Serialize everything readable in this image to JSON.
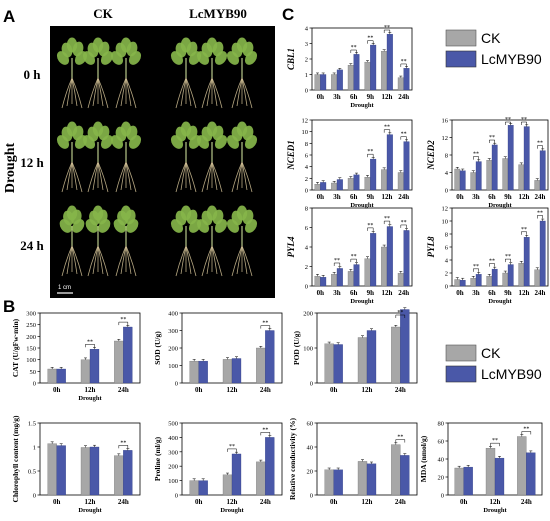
{
  "panels": {
    "a_label": "A",
    "b_label": "B",
    "c_label": "C"
  },
  "photo": {
    "col_labels": [
      "CK",
      "LcMYB90"
    ],
    "row_labels": [
      "0 h",
      "12 h",
      "24 h"
    ],
    "group_label": "Drought",
    "scale_label": "1 cm"
  },
  "legend": {
    "entries": [
      "CK",
      "LcMYB90"
    ],
    "colors": {
      "ck": "#a7a7a7",
      "lcmyb90": "#4a58a8"
    }
  },
  "colors": {
    "ck": "#a7a7a7",
    "lcmyb90": "#4a58a8",
    "photo_background": "#000000",
    "leaf": "#86b54a",
    "root": "#d8c79a"
  },
  "sig_mark": "**",
  "chart_data": [
    {
      "id": "CBL1",
      "type": "bar",
      "ylabel": "CBL1",
      "italic_ylabel": true,
      "xlabel": "Drought",
      "categories": [
        "0h",
        "3h",
        "6h",
        "9h",
        "12h",
        "24h"
      ],
      "ylim": [
        0,
        4
      ],
      "yticks": [
        0,
        1,
        2,
        3,
        4
      ],
      "series": [
        {
          "name": "CK",
          "values": [
            1.0,
            1.0,
            1.6,
            1.8,
            2.5,
            0.8
          ]
        },
        {
          "name": "LcMYB90",
          "values": [
            1.0,
            1.3,
            2.3,
            2.9,
            3.6,
            1.4
          ]
        }
      ],
      "significant": [
        false,
        false,
        true,
        true,
        true,
        true
      ]
    },
    {
      "id": "NCED1",
      "type": "bar",
      "ylabel": "NCED1",
      "italic_ylabel": true,
      "xlabel": "Drought",
      "categories": [
        "0h",
        "3h",
        "6h",
        "9h",
        "12h",
        "24h"
      ],
      "ylim": [
        0,
        12
      ],
      "yticks": [
        0,
        2,
        4,
        6,
        8,
        10,
        12
      ],
      "series": [
        {
          "name": "CK",
          "values": [
            1.0,
            1.2,
            2.0,
            2.2,
            3.5,
            3.0
          ]
        },
        {
          "name": "LcMYB90",
          "values": [
            1.3,
            1.8,
            2.6,
            5.3,
            9.5,
            8.3
          ]
        }
      ],
      "significant": [
        false,
        false,
        false,
        true,
        true,
        true
      ]
    },
    {
      "id": "NCED2",
      "type": "bar",
      "ylabel": "NCED2",
      "italic_ylabel": true,
      "xlabel": "Drought",
      "categories": [
        "0h",
        "3h",
        "6h",
        "9h",
        "12h",
        "24h"
      ],
      "ylim": [
        0,
        16
      ],
      "yticks": [
        0,
        4,
        8,
        12,
        16
      ],
      "series": [
        {
          "name": "CK",
          "values": [
            4.8,
            4.0,
            6.8,
            7.2,
            5.8,
            2.2
          ]
        },
        {
          "name": "LcMYB90",
          "values": [
            4.4,
            6.5,
            10.3,
            14.8,
            14.5,
            9.0
          ]
        }
      ],
      "significant": [
        false,
        true,
        true,
        true,
        true,
        true
      ]
    },
    {
      "id": "PYL4",
      "type": "bar",
      "ylabel": "PYL4",
      "italic_ylabel": true,
      "xlabel": "Drought",
      "categories": [
        "0h",
        "3h",
        "6h",
        "9h",
        "12h",
        "24h"
      ],
      "ylim": [
        0,
        8
      ],
      "yticks": [
        0,
        2,
        4,
        6,
        8
      ],
      "series": [
        {
          "name": "CK",
          "values": [
            1.0,
            1.2,
            1.5,
            2.8,
            4.0,
            1.3
          ]
        },
        {
          "name": "LcMYB90",
          "values": [
            0.9,
            1.8,
            2.2,
            5.4,
            6.1,
            5.7
          ]
        }
      ],
      "significant": [
        false,
        true,
        true,
        true,
        true,
        true
      ]
    },
    {
      "id": "PYL8",
      "type": "bar",
      "ylabel": "PYL8",
      "italic_ylabel": true,
      "xlabel": "Drought",
      "categories": [
        "0h",
        "3h",
        "6h",
        "9h",
        "12h",
        "24h"
      ],
      "ylim": [
        0,
        12
      ],
      "yticks": [
        0,
        2,
        4,
        6,
        8,
        10,
        12
      ],
      "series": [
        {
          "name": "CK",
          "values": [
            1.0,
            1.2,
            1.5,
            2.0,
            3.5,
            2.5
          ]
        },
        {
          "name": "LcMYB90",
          "values": [
            0.9,
            1.8,
            2.6,
            3.3,
            7.5,
            10.0
          ]
        }
      ],
      "significant": [
        false,
        true,
        true,
        true,
        true,
        true
      ]
    },
    {
      "id": "CAT",
      "type": "bar",
      "ylabel": "CAT (U/gFw·min)",
      "xlabel": "Drought",
      "categories": [
        "0h",
        "12h",
        "24h"
      ],
      "ylim": [
        0,
        300
      ],
      "yticks": [
        0,
        50,
        100,
        150,
        200,
        250,
        300
      ],
      "series": [
        {
          "name": "CK",
          "values": [
            60,
            100,
            180
          ]
        },
        {
          "name": "LcMYB90",
          "values": [
            60,
            145,
            240
          ]
        }
      ],
      "significant": [
        false,
        true,
        true
      ]
    },
    {
      "id": "SOD",
      "type": "bar",
      "ylabel": "SOD (U/g)",
      "categories": [
        "0h",
        "12h",
        "24h"
      ],
      "ylim": [
        0,
        400
      ],
      "yticks": [
        0,
        100,
        200,
        300,
        400
      ],
      "series": [
        {
          "name": "CK",
          "values": [
            125,
            135,
            200
          ]
        },
        {
          "name": "LcMYB90",
          "values": [
            125,
            140,
            300
          ]
        }
      ],
      "significant": [
        false,
        false,
        true
      ]
    },
    {
      "id": "POD",
      "type": "bar",
      "ylabel": "POD (U/g)",
      "categories": [
        "0h",
        "12h",
        "24h"
      ],
      "ylim": [
        0,
        200
      ],
      "yticks": [
        0,
        100,
        200
      ],
      "series": [
        {
          "name": "CK",
          "values": [
            112,
            130,
            160
          ]
        },
        {
          "name": "LcMYB90",
          "values": [
            110,
            150,
            210
          ]
        }
      ],
      "significant": [
        false,
        false,
        true
      ]
    },
    {
      "id": "Chlorophyll",
      "type": "bar",
      "ylabel": "Chlorophyll content (mg/g)",
      "xlabel": "Drought",
      "categories": [
        "0h",
        "12h",
        "24h"
      ],
      "ylim": [
        0,
        1.5
      ],
      "yticks": [
        0.0,
        0.5,
        1.0,
        1.5
      ],
      "series": [
        {
          "name": "CK",
          "values": [
            1.07,
            0.99,
            0.82
          ]
        },
        {
          "name": "LcMYB90",
          "values": [
            1.03,
            1.0,
            0.93
          ]
        }
      ],
      "significant": [
        false,
        false,
        true
      ]
    },
    {
      "id": "Proline",
      "type": "bar",
      "ylabel": "Proline (ml/g)",
      "xlabel": "Drought",
      "categories": [
        "0h",
        "12h",
        "24h"
      ],
      "ylim": [
        0,
        500
      ],
      "yticks": [
        0,
        100,
        200,
        300,
        400,
        500
      ],
      "series": [
        {
          "name": "CK",
          "values": [
            100,
            140,
            230
          ]
        },
        {
          "name": "LcMYB90",
          "values": [
            100,
            285,
            400
          ]
        }
      ],
      "significant": [
        false,
        true,
        true
      ]
    },
    {
      "id": "Relative conductivity",
      "type": "bar",
      "ylabel": "Relative conductivity (%)",
      "categories": [
        "0h",
        "12h",
        "24h"
      ],
      "ylim": [
        0,
        60
      ],
      "yticks": [
        0,
        20,
        40,
        60
      ],
      "series": [
        {
          "name": "CK",
          "values": [
            21,
            28,
            42
          ]
        },
        {
          "name": "LcMYB90",
          "values": [
            21,
            26,
            33
          ]
        }
      ],
      "significant": [
        false,
        false,
        true
      ]
    },
    {
      "id": "MDA",
      "type": "bar",
      "ylabel": "MDA (nmol/g)",
      "xlabel": "Drought",
      "categories": [
        "0h",
        "12h",
        "24h"
      ],
      "ylim": [
        0,
        80
      ],
      "yticks": [
        0,
        20,
        40,
        60,
        80
      ],
      "series": [
        {
          "name": "CK",
          "values": [
            30,
            52,
            65
          ]
        },
        {
          "name": "LcMYB90",
          "values": [
            31,
            41,
            47
          ]
        }
      ],
      "significant": [
        false,
        true,
        true
      ]
    }
  ]
}
